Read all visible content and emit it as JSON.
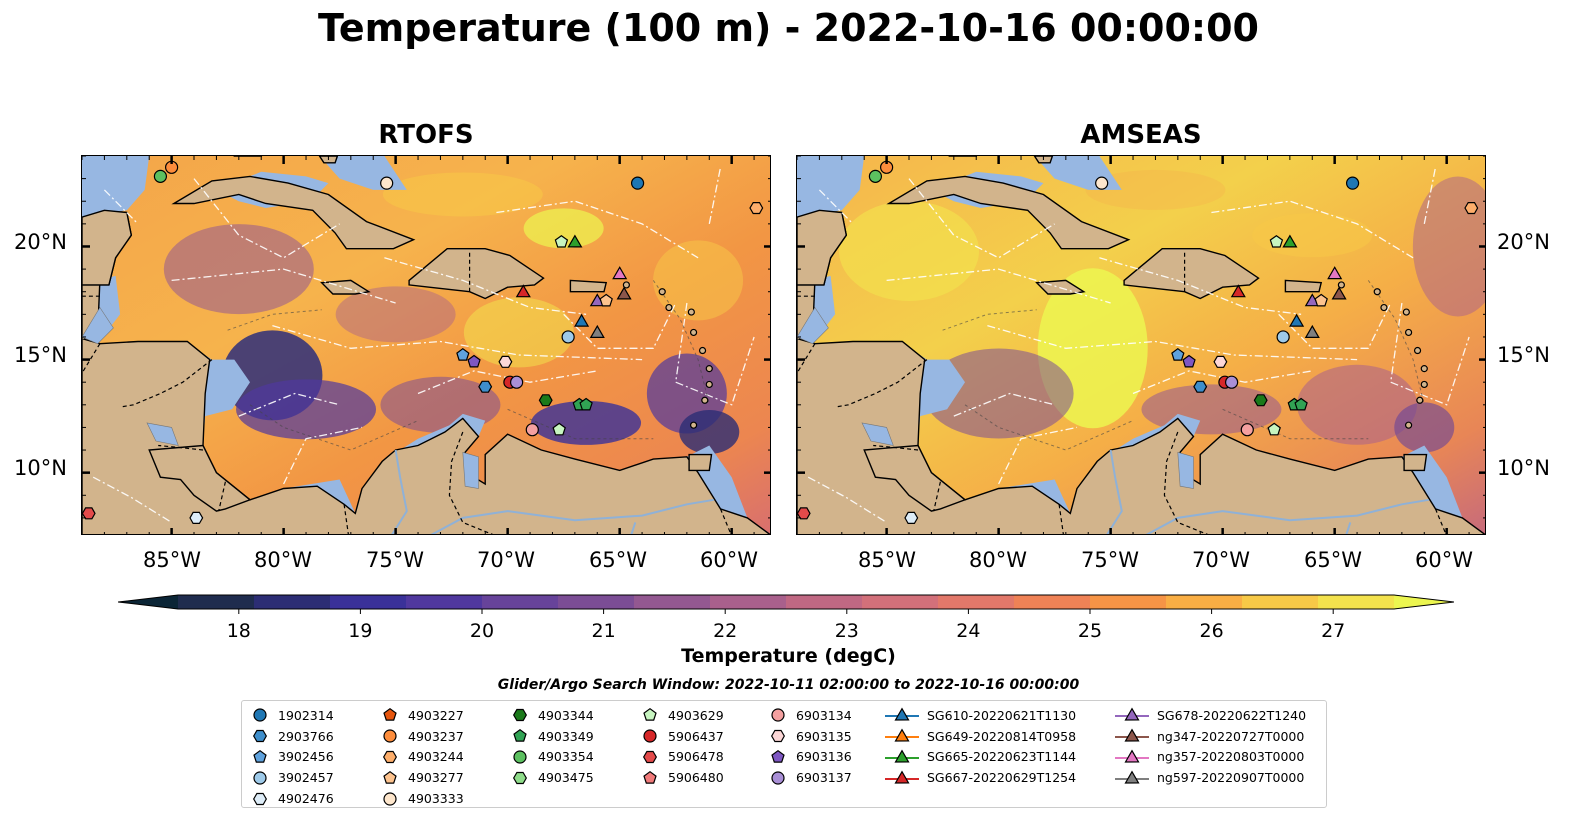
{
  "title": "Temperature (100 m) - 2022-10-16 00:00:00",
  "panels": [
    {
      "name": "RTOFS"
    },
    {
      "name": "AMSEAS"
    }
  ],
  "lat_labels": [
    "20°N",
    "15°N",
    "10°N"
  ],
  "lon_labels": [
    "85°W",
    "80°W",
    "75°W",
    "70°W",
    "65°W",
    "60°W"
  ],
  "colorbar": {
    "label": "Temperature (degC)",
    "ticks": [
      "18",
      "19",
      "20",
      "21",
      "22",
      "23",
      "24",
      "25",
      "26",
      "27"
    ],
    "min": 17.5,
    "max": 27.5,
    "colors": [
      "#0b2536",
      "#1f2c4e",
      "#2c2d74",
      "#3a3199",
      "#50389e",
      "#67439a",
      "#7b4d95",
      "#935891",
      "#a9608c",
      "#c06883",
      "#d2707a",
      "#e2786a",
      "#ef8256",
      "#f69446",
      "#f9ae44",
      "#f7c947",
      "#f3e24d",
      "#ecf650"
    ]
  },
  "search_window": "Glider/Argo Search Window: 2022-10-11 02:00:00 to 2022-10-16 00:00:00",
  "legend": {
    "columns": [
      [
        {
          "label": "1902314",
          "marker": "circle",
          "color": "#1f77b4"
        },
        {
          "label": "2903766",
          "marker": "hexagon",
          "color": "#3e8ecb"
        },
        {
          "label": "3902456",
          "marker": "pentagon",
          "color": "#5fa2dd"
        },
        {
          "label": "3902457",
          "marker": "circle",
          "color": "#9ecae9"
        },
        {
          "label": "4902476",
          "marker": "hexagon",
          "color": "#deedf8"
        }
      ],
      [
        {
          "label": "4903227",
          "marker": "pentagon",
          "color": "#e6550d"
        },
        {
          "label": "4903237",
          "marker": "circle",
          "color": "#fd8d3c"
        },
        {
          "label": "4903244",
          "marker": "hexagon",
          "color": "#fdae6b"
        },
        {
          "label": "4903277",
          "marker": "pentagon",
          "color": "#fdc38e"
        },
        {
          "label": "4903333",
          "marker": "circle",
          "color": "#fde6cc"
        }
      ],
      [
        {
          "label": "4903344",
          "marker": "hexagon",
          "color": "#1a7a1a"
        },
        {
          "label": "4903349",
          "marker": "pentagon",
          "color": "#31a354"
        },
        {
          "label": "4903354",
          "marker": "circle",
          "color": "#5cc060"
        },
        {
          "label": "4903475",
          "marker": "hexagon",
          "color": "#8fdc8a"
        }
      ],
      [
        {
          "label": "4903629",
          "marker": "pentagon",
          "color": "#c7f5c0"
        },
        {
          "label": "5906437",
          "marker": "circle",
          "color": "#d62728"
        },
        {
          "label": "5906478",
          "marker": "hexagon",
          "color": "#e34a4a"
        },
        {
          "label": "5906480",
          "marker": "pentagon",
          "color": "#f07a7a"
        }
      ],
      [
        {
          "label": "6903134",
          "marker": "circle",
          "color": "#f4a0a0"
        },
        {
          "label": "6903135",
          "marker": "hexagon",
          "color": "#fcd7d7"
        },
        {
          "label": "6903136",
          "marker": "pentagon",
          "color": "#7e57c2"
        },
        {
          "label": "6903137",
          "marker": "circle",
          "color": "#a98fd6"
        }
      ],
      [
        {
          "label": "SG610-20220621T1130",
          "marker": "triangle",
          "color": "#1f77b4"
        },
        {
          "label": "SG649-20220814T0958",
          "marker": "triangle",
          "color": "#ff7f0e"
        },
        {
          "label": "SG665-20220623T1144",
          "marker": "triangle",
          "color": "#2ca02c"
        },
        {
          "label": "SG667-20220629T1254",
          "marker": "triangle",
          "color": "#d62728"
        }
      ],
      [
        {
          "label": "SG678-20220622T1240",
          "marker": "triangle",
          "color": "#9467bd"
        },
        {
          "label": "ng347-20220727T0000",
          "marker": "triangle",
          "color": "#8c564b"
        },
        {
          "label": "ng357-20220803T0000",
          "marker": "triangle",
          "color": "#e377c2"
        },
        {
          "label": "ng597-20220907T0000",
          "marker": "triangle",
          "color": "#7f7f7f"
        }
      ]
    ]
  },
  "observations": [
    {
      "marker": "circle",
      "color": "#5cc060",
      "lon": -85.5,
      "lat": 23.1
    },
    {
      "marker": "circle",
      "color": "#fd8d3c",
      "lon": -85.0,
      "lat": 23.5
    },
    {
      "marker": "circle",
      "color": "#fde6cc",
      "lon": -75.4,
      "lat": 22.8
    },
    {
      "marker": "circle",
      "color": "#1f77b4",
      "lon": -64.2,
      "lat": 22.8
    },
    {
      "marker": "hexagon",
      "color": "#fdae6b",
      "lon": -58.9,
      "lat": 21.7
    },
    {
      "marker": "pentagon",
      "color": "#c7f5c0",
      "lon": -67.6,
      "lat": 20.2
    },
    {
      "marker": "triangle",
      "color": "#2ca02c",
      "lon": -67.0,
      "lat": 20.2
    },
    {
      "marker": "triangle",
      "color": "#e377c2",
      "lon": -65.0,
      "lat": 18.8
    },
    {
      "marker": "triangle",
      "color": "#d62728",
      "lon": -69.3,
      "lat": 18.0
    },
    {
      "marker": "triangle",
      "color": "#8c564b",
      "lon": -64.8,
      "lat": 17.9
    },
    {
      "marker": "triangle",
      "color": "#9467bd",
      "lon": -66.0,
      "lat": 17.6
    },
    {
      "marker": "pentagon",
      "color": "#fdc38e",
      "lon": -65.6,
      "lat": 17.6
    },
    {
      "marker": "triangle",
      "color": "#1f77b4",
      "lon": -66.7,
      "lat": 16.7
    },
    {
      "marker": "circle",
      "color": "#9ecae9",
      "lon": -67.3,
      "lat": 16.0
    },
    {
      "marker": "triangle",
      "color": "#7f7f7f",
      "lon": -66.0,
      "lat": 16.2
    },
    {
      "marker": "pentagon",
      "color": "#5fa2dd",
      "lon": -72.0,
      "lat": 15.2
    },
    {
      "marker": "pentagon",
      "color": "#7e57c2",
      "lon": -71.5,
      "lat": 14.9
    },
    {
      "marker": "hexagon",
      "color": "#fcd7d7",
      "lon": -70.1,
      "lat": 14.9
    },
    {
      "marker": "hexagon",
      "color": "#3e8ecb",
      "lon": -71.0,
      "lat": 13.8
    },
    {
      "marker": "circle",
      "color": "#d62728",
      "lon": -69.9,
      "lat": 14.0
    },
    {
      "marker": "circle",
      "color": "#a98fd6",
      "lon": -69.6,
      "lat": 14.0
    },
    {
      "marker": "hexagon",
      "color": "#1a7a1a",
      "lon": -68.3,
      "lat": 13.2
    },
    {
      "marker": "pentagon",
      "color": "#31a354",
      "lon": -66.8,
      "lat": 13.0
    },
    {
      "marker": "pentagon",
      "color": "#31a354",
      "lon": -66.5,
      "lat": 13.0
    },
    {
      "marker": "circle",
      "color": "#f4a0a0",
      "lon": -68.9,
      "lat": 11.9
    },
    {
      "marker": "pentagon",
      "color": "#c7f5c0",
      "lon": -67.7,
      "lat": 11.9
    },
    {
      "marker": "hexagon",
      "color": "#e34a4a",
      "lon": -88.7,
      "lat": 8.2
    },
    {
      "marker": "hexagon",
      "color": "#deedf8",
      "lon": -83.9,
      "lat": 8.0
    }
  ]
}
